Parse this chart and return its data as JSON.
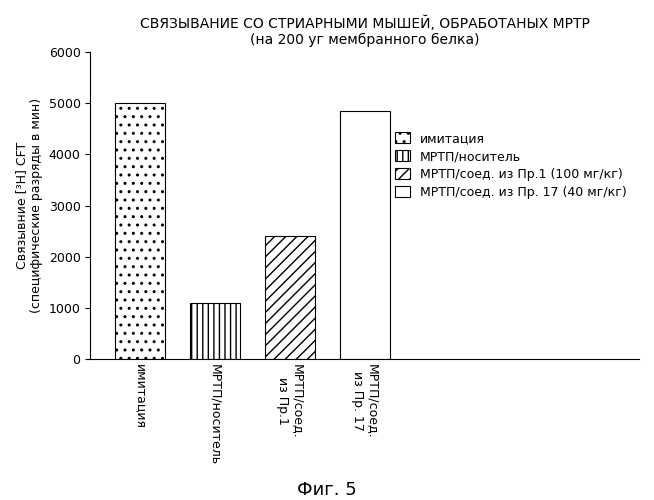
{
  "title": "СВЯЗЫВАНИЕ СО СТРИАРНЫМИ МЫШЕЙ, ОБРАБОТАНЫХ МРТР",
  "subtitle": "(на 200 уг мембранного белка)",
  "ylabel_line1": "Связывние [³Н] CFT",
  "ylabel_line2": "(специфические разряды в мин)",
  "categories": [
    "имитация",
    "МРТП/носитель",
    "МРТП/соед.\nиз Пр.1",
    "МРТП/соед.\nиз Пр. 17"
  ],
  "values": [
    5000,
    1100,
    2400,
    4850
  ],
  "hatches": [
    "..",
    "|||",
    "///",
    ""
  ],
  "ylim": [
    0,
    6000
  ],
  "yticks": [
    0,
    1000,
    2000,
    3000,
    4000,
    5000,
    6000
  ],
  "legend_labels": [
    "имитация",
    "МРТП/носитель",
    "МРТП/соед. из Пр.1 (100 мг/кг)",
    "МРТП/соед. из Пр. 17 (40 мг/кг)"
  ],
  "legend_hatches": [
    "..",
    "|||",
    "///",
    ""
  ],
  "fig_caption": "Фиг. 5",
  "background_color": "#ffffff",
  "title_fontsize": 10,
  "tick_fontsize": 9,
  "legend_fontsize": 9,
  "bar_width": 0.4,
  "bar_positions": [
    0.5,
    1.1,
    1.7,
    2.3
  ]
}
